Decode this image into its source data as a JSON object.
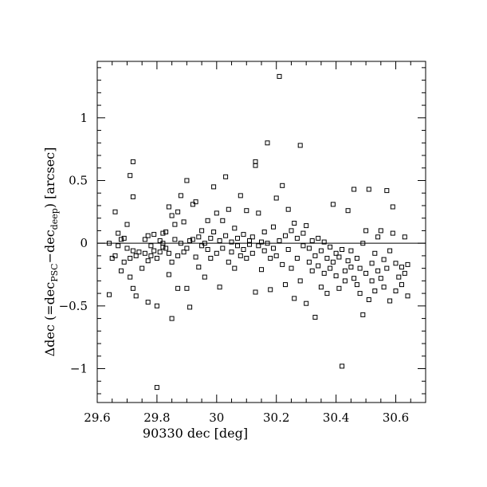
{
  "chart_data": {
    "type": "scatter",
    "title": "",
    "xlabel": "90330 dec [deg]",
    "ylabel": {
      "prefix": "Δdec (=dec",
      "sub1": "PSC",
      "mid": "−dec",
      "sub2": "deep",
      "suffix": ") [arcsec]"
    },
    "xlim": [
      29.6,
      30.7
    ],
    "ylim": [
      -1.27,
      1.45
    ],
    "x_ticks": [
      29.6,
      29.8,
      30.0,
      30.2,
      30.4,
      30.6
    ],
    "x_tick_labels": [
      "29.6",
      "29.8",
      "30",
      "30.2",
      "30.4",
      "30.6"
    ],
    "y_ticks": [
      -1.0,
      -0.5,
      0.0,
      0.5,
      1.0
    ],
    "y_tick_labels": [
      "−1",
      "−0.5",
      "0",
      "0.5",
      "1"
    ],
    "reference_line": 0,
    "grid": false,
    "marker": "open-square",
    "points": [
      [
        29.64,
        0.0
      ],
      [
        29.64,
        -0.41
      ],
      [
        29.65,
        -0.12
      ],
      [
        29.66,
        0.25
      ],
      [
        29.66,
        -0.1
      ],
      [
        29.67,
        0.08
      ],
      [
        29.67,
        -0.02
      ],
      [
        29.68,
        -0.22
      ],
      [
        29.68,
        0.03
      ],
      [
        29.69,
        -0.15
      ],
      [
        29.69,
        0.04
      ],
      [
        29.7,
        -0.04
      ],
      [
        29.7,
        0.15
      ],
      [
        29.71,
        0.54
      ],
      [
        29.71,
        -0.12
      ],
      [
        29.71,
        -0.27
      ],
      [
        29.72,
        0.65
      ],
      [
        29.72,
        0.37
      ],
      [
        29.72,
        -0.06
      ],
      [
        29.72,
        -0.36
      ],
      [
        29.73,
        -0.42
      ],
      [
        29.73,
        -0.1
      ],
      [
        29.74,
        -0.07
      ],
      [
        29.75,
        -0.2
      ],
      [
        29.76,
        -0.08
      ],
      [
        29.76,
        0.03
      ],
      [
        29.77,
        0.06
      ],
      [
        29.77,
        -0.14
      ],
      [
        29.77,
        -0.47
      ],
      [
        29.78,
        -0.02
      ],
      [
        29.78,
        -0.1
      ],
      [
        29.79,
        0.07
      ],
      [
        29.79,
        -0.06
      ],
      [
        29.8,
        -0.12
      ],
      [
        29.8,
        -0.5
      ],
      [
        29.8,
        -1.15
      ],
      [
        29.81,
        0.02
      ],
      [
        29.81,
        -0.07
      ],
      [
        29.82,
        0.08
      ],
      [
        29.82,
        0.0
      ],
      [
        29.82,
        -0.03
      ],
      [
        29.83,
        0.09
      ],
      [
        29.83,
        -0.04
      ],
      [
        29.84,
        0.29
      ],
      [
        29.84,
        -0.08
      ],
      [
        29.84,
        -0.25
      ],
      [
        29.85,
        0.22
      ],
      [
        29.85,
        -0.15
      ],
      [
        29.85,
        -0.6
      ],
      [
        29.86,
        0.15
      ],
      [
        29.86,
        0.03
      ],
      [
        29.87,
        0.25
      ],
      [
        29.87,
        -0.1
      ],
      [
        29.87,
        -0.36
      ],
      [
        29.88,
        0.0
      ],
      [
        29.88,
        0.38
      ],
      [
        29.89,
        -0.07
      ],
      [
        29.89,
        0.17
      ],
      [
        29.9,
        0.5
      ],
      [
        29.9,
        -0.04
      ],
      [
        29.9,
        -0.36
      ],
      [
        29.91,
        0.02
      ],
      [
        29.91,
        -0.51
      ],
      [
        29.92,
        0.31
      ],
      [
        29.92,
        0.03
      ],
      [
        29.93,
        -0.11
      ],
      [
        29.93,
        0.33
      ],
      [
        29.94,
        0.05
      ],
      [
        29.94,
        -0.19
      ],
      [
        29.95,
        -0.02
      ],
      [
        29.95,
        0.1
      ],
      [
        29.96,
        -0.27
      ],
      [
        29.96,
        0.0
      ],
      [
        29.97,
        0.18
      ],
      [
        29.97,
        -0.05
      ],
      [
        29.98,
        0.04
      ],
      [
        29.98,
        -0.12
      ],
      [
        29.99,
        0.45
      ],
      [
        29.99,
        0.09
      ],
      [
        30.0,
        -0.08
      ],
      [
        30.0,
        0.24
      ],
      [
        30.01,
        -0.35
      ],
      [
        30.01,
        0.02
      ],
      [
        30.02,
        0.18
      ],
      [
        30.02,
        -0.04
      ],
      [
        30.03,
        0.53
      ],
      [
        30.03,
        0.06
      ],
      [
        30.04,
        -0.15
      ],
      [
        30.04,
        0.27
      ],
      [
        30.05,
        0.01
      ],
      [
        30.05,
        -0.07
      ],
      [
        30.06,
        0.12
      ],
      [
        30.06,
        -0.2
      ],
      [
        30.07,
        0.04
      ],
      [
        30.07,
        -0.02
      ],
      [
        30.08,
        0.38
      ],
      [
        30.08,
        -0.1
      ],
      [
        30.09,
        0.07
      ],
      [
        30.09,
        -0.05
      ],
      [
        30.1,
        0.26
      ],
      [
        30.1,
        -0.12
      ],
      [
        30.11,
        0.02
      ],
      [
        30.11,
        -0.01
      ],
      [
        30.12,
        0.05
      ],
      [
        30.12,
        -0.08
      ],
      [
        30.13,
        0.65
      ],
      [
        30.13,
        0.62
      ],
      [
        30.13,
        -0.39
      ],
      [
        30.14,
        0.24
      ],
      [
        30.14,
        -0.02
      ],
      [
        30.15,
        0.01
      ],
      [
        30.15,
        -0.21
      ],
      [
        30.16,
        0.09
      ],
      [
        30.16,
        -0.06
      ],
      [
        30.17,
        0.8
      ],
      [
        30.17,
        0.0
      ],
      [
        30.18,
        -0.37
      ],
      [
        30.18,
        -0.12
      ],
      [
        30.19,
        0.13
      ],
      [
        30.19,
        -0.04
      ],
      [
        30.2,
        0.36
      ],
      [
        30.2,
        -0.1
      ],
      [
        30.21,
        0.02
      ],
      [
        30.21,
        1.33
      ],
      [
        30.22,
        0.46
      ],
      [
        30.22,
        -0.17
      ],
      [
        30.23,
        0.06
      ],
      [
        30.23,
        -0.33
      ],
      [
        30.24,
        0.27
      ],
      [
        30.24,
        -0.05
      ],
      [
        30.25,
        -0.2
      ],
      [
        30.25,
        0.1
      ],
      [
        30.26,
        -0.44
      ],
      [
        30.26,
        0.16
      ],
      [
        30.27,
        0.04
      ],
      [
        30.27,
        -0.12
      ],
      [
        30.28,
        0.78
      ],
      [
        30.28,
        -0.3
      ],
      [
        30.29,
        0.08
      ],
      [
        30.29,
        -0.02
      ],
      [
        30.3,
        -0.48
      ],
      [
        30.3,
        0.14
      ],
      [
        30.31,
        -0.15
      ],
      [
        30.31,
        -0.04
      ],
      [
        30.32,
        0.02
      ],
      [
        30.32,
        -0.22
      ],
      [
        30.33,
        -0.59
      ],
      [
        30.33,
        -0.1
      ],
      [
        30.34,
        0.04
      ],
      [
        30.34,
        -0.18
      ],
      [
        30.35,
        -0.35
      ],
      [
        30.35,
        -0.06
      ],
      [
        30.36,
        0.01
      ],
      [
        30.36,
        -0.24
      ],
      [
        30.37,
        -0.12
      ],
      [
        30.37,
        -0.4
      ],
      [
        30.38,
        -0.03
      ],
      [
        30.38,
        -0.2
      ],
      [
        30.39,
        0.31
      ],
      [
        30.39,
        -0.15
      ],
      [
        30.4,
        -0.08
      ],
      [
        30.4,
        -0.26
      ],
      [
        30.41,
        -0.36
      ],
      [
        30.41,
        -0.11
      ],
      [
        30.42,
        -0.98
      ],
      [
        30.42,
        -0.05
      ],
      [
        30.43,
        -0.22
      ],
      [
        30.43,
        -0.3
      ],
      [
        30.44,
        -0.14
      ],
      [
        30.44,
        0.26
      ],
      [
        30.45,
        -0.19
      ],
      [
        30.45,
        -0.06
      ],
      [
        30.46,
        0.43
      ],
      [
        30.46,
        -0.28
      ],
      [
        30.47,
        -0.33
      ],
      [
        30.47,
        -0.12
      ],
      [
        30.48,
        -0.4
      ],
      [
        30.48,
        -0.2
      ],
      [
        30.49,
        -0.57
      ],
      [
        30.49,
        0.0
      ],
      [
        30.5,
        -0.24
      ],
      [
        30.5,
        0.1
      ],
      [
        30.51,
        0.43
      ],
      [
        30.51,
        -0.45
      ],
      [
        30.52,
        -0.16
      ],
      [
        30.52,
        -0.3
      ],
      [
        30.53,
        -0.08
      ],
      [
        30.53,
        -0.38
      ],
      [
        30.54,
        -0.22
      ],
      [
        30.54,
        0.05
      ],
      [
        30.55,
        0.1
      ],
      [
        30.55,
        -0.28
      ],
      [
        30.56,
        -0.13
      ],
      [
        30.56,
        -0.35
      ],
      [
        30.57,
        0.42
      ],
      [
        30.57,
        -0.2
      ],
      [
        30.58,
        -0.46
      ],
      [
        30.58,
        -0.06
      ],
      [
        30.59,
        0.08
      ],
      [
        30.59,
        0.29
      ],
      [
        30.6,
        -0.16
      ],
      [
        30.6,
        -0.38
      ],
      [
        30.61,
        -0.27
      ],
      [
        30.62,
        -0.19
      ],
      [
        30.62,
        -0.33
      ],
      [
        30.63,
        0.05
      ],
      [
        30.63,
        -0.24
      ],
      [
        30.64,
        -0.42
      ],
      [
        30.64,
        -0.17
      ]
    ]
  }
}
